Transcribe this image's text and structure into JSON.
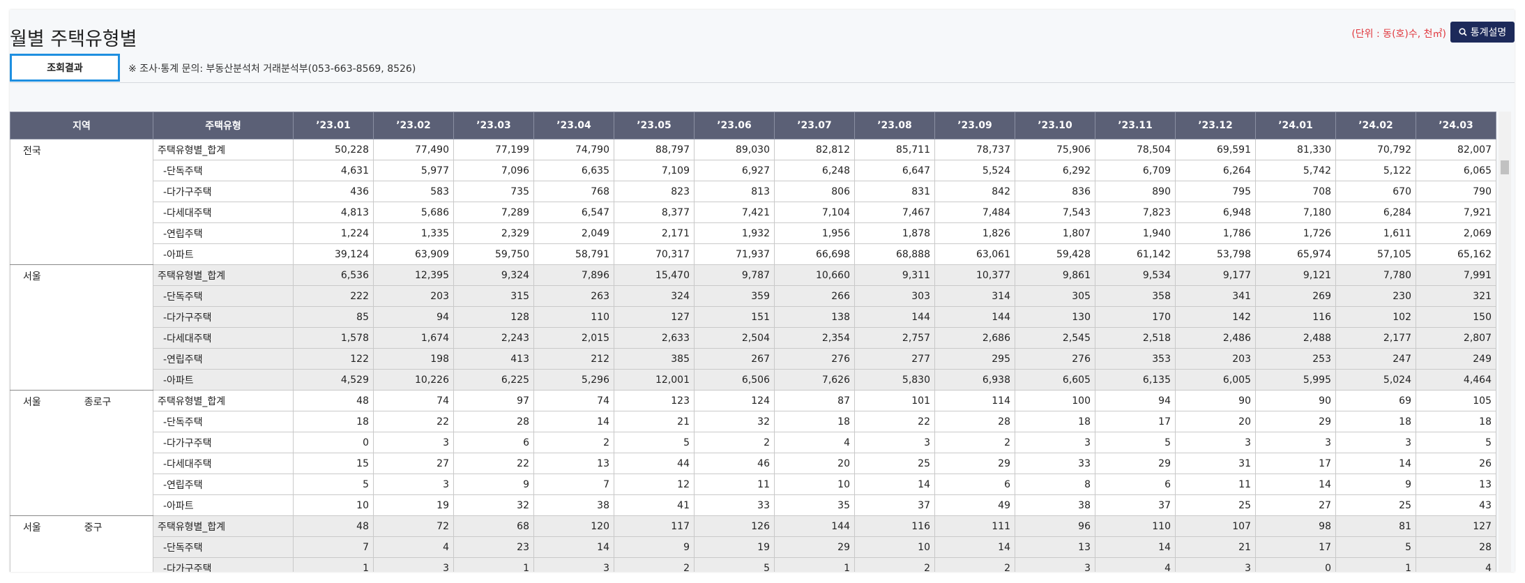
{
  "header": {
    "title": "월별 주택유형별",
    "unit": "(단위 : 동(호)수, 천㎡)",
    "button": "통계설명"
  },
  "tab": {
    "label": "조회결과",
    "note": "※ 조사·통계 문의: 부동산분석처 거래분석부(053-663-8569, 8526)"
  },
  "table": {
    "columns": [
      "지역",
      "주택유형",
      "’23.01",
      "’23.02",
      "’23.03",
      "’23.04",
      "’23.05",
      "’23.06",
      "’23.07",
      "’23.08",
      "’23.09",
      "’23.10",
      "’23.11",
      "’23.12",
      "’24.01",
      "’24.02",
      "’24.03"
    ],
    "groups": [
      {
        "region": "전국",
        "rows": [
          {
            "type": "주택유형별_합계",
            "values": [
              "50,228",
              "77,490",
              "77,199",
              "74,790",
              "88,797",
              "89,030",
              "82,812",
              "85,711",
              "78,737",
              "75,906",
              "78,504",
              "69,591",
              "81,330",
              "70,792",
              "82,007"
            ]
          },
          {
            "type": "-단독주택",
            "values": [
              "4,631",
              "5,977",
              "7,096",
              "6,635",
              "7,109",
              "6,927",
              "6,248",
              "6,647",
              "5,524",
              "6,292",
              "6,709",
              "6,264",
              "5,742",
              "5,122",
              "6,065"
            ]
          },
          {
            "type": "-다가구주택",
            "values": [
              "436",
              "583",
              "735",
              "768",
              "823",
              "813",
              "806",
              "831",
              "842",
              "836",
              "890",
              "795",
              "708",
              "670",
              "790"
            ]
          },
          {
            "type": "-다세대주택",
            "values": [
              "4,813",
              "5,686",
              "7,289",
              "6,547",
              "8,377",
              "7,421",
              "7,104",
              "7,467",
              "7,484",
              "7,543",
              "7,823",
              "6,948",
              "7,180",
              "6,284",
              "7,921"
            ]
          },
          {
            "type": "-연립주택",
            "values": [
              "1,224",
              "1,335",
              "2,329",
              "2,049",
              "2,171",
              "1,932",
              "1,956",
              "1,878",
              "1,826",
              "1,807",
              "1,940",
              "1,786",
              "1,726",
              "1,611",
              "2,069"
            ]
          },
          {
            "type": "-아파트",
            "values": [
              "39,124",
              "63,909",
              "59,750",
              "58,791",
              "70,317",
              "71,937",
              "66,698",
              "68,888",
              "63,061",
              "59,428",
              "61,142",
              "53,798",
              "65,974",
              "57,105",
              "65,162"
            ]
          }
        ]
      },
      {
        "region": "서울",
        "rows": [
          {
            "type": "주택유형별_합계",
            "values": [
              "6,536",
              "12,395",
              "9,324",
              "7,896",
              "15,470",
              "9,787",
              "10,660",
              "9,311",
              "10,377",
              "9,861",
              "9,534",
              "9,177",
              "9,121",
              "7,780",
              "7,991"
            ]
          },
          {
            "type": "-단독주택",
            "values": [
              "222",
              "203",
              "315",
              "263",
              "324",
              "359",
              "266",
              "303",
              "314",
              "305",
              "358",
              "341",
              "269",
              "230",
              "321"
            ]
          },
          {
            "type": "-다가구주택",
            "values": [
              "85",
              "94",
              "128",
              "110",
              "127",
              "151",
              "138",
              "144",
              "144",
              "130",
              "170",
              "142",
              "116",
              "102",
              "150"
            ]
          },
          {
            "type": "-다세대주택",
            "values": [
              "1,578",
              "1,674",
              "2,243",
              "2,015",
              "2,633",
              "2,504",
              "2,354",
              "2,757",
              "2,686",
              "2,545",
              "2,518",
              "2,486",
              "2,488",
              "2,177",
              "2,807"
            ]
          },
          {
            "type": "-연립주택",
            "values": [
              "122",
              "198",
              "413",
              "212",
              "385",
              "267",
              "276",
              "277",
              "295",
              "276",
              "353",
              "203",
              "253",
              "247",
              "249"
            ]
          },
          {
            "type": "-아파트",
            "values": [
              "4,529",
              "10,226",
              "6,225",
              "5,296",
              "12,001",
              "6,506",
              "7,626",
              "5,830",
              "6,938",
              "6,605",
              "6,135",
              "6,005",
              "5,995",
              "5,024",
              "4,464"
            ]
          }
        ]
      },
      {
        "region": "서울",
        "district": "종로구",
        "rows": [
          {
            "type": "주택유형별_합계",
            "values": [
              "48",
              "74",
              "97",
              "74",
              "123",
              "124",
              "87",
              "101",
              "114",
              "100",
              "94",
              "90",
              "90",
              "69",
              "105"
            ]
          },
          {
            "type": "-단독주택",
            "values": [
              "18",
              "22",
              "28",
              "14",
              "21",
              "32",
              "18",
              "22",
              "28",
              "18",
              "17",
              "20",
              "29",
              "18",
              "18"
            ]
          },
          {
            "type": "-다가구주택",
            "values": [
              "0",
              "3",
              "6",
              "2",
              "5",
              "2",
              "4",
              "3",
              "2",
              "3",
              "5",
              "3",
              "3",
              "3",
              "5"
            ]
          },
          {
            "type": "-다세대주택",
            "values": [
              "15",
              "27",
              "22",
              "13",
              "44",
              "46",
              "20",
              "25",
              "29",
              "33",
              "29",
              "31",
              "17",
              "14",
              "26"
            ]
          },
          {
            "type": "-연립주택",
            "values": [
              "5",
              "3",
              "9",
              "7",
              "12",
              "11",
              "10",
              "14",
              "6",
              "8",
              "6",
              "11",
              "14",
              "9",
              "13"
            ]
          },
          {
            "type": "-아파트",
            "values": [
              "10",
              "19",
              "32",
              "38",
              "41",
              "33",
              "35",
              "37",
              "49",
              "38",
              "37",
              "25",
              "27",
              "25",
              "43"
            ]
          }
        ]
      },
      {
        "region": "서울",
        "district": "중구",
        "rows": [
          {
            "type": "주택유형별_합계",
            "values": [
              "48",
              "72",
              "68",
              "120",
              "117",
              "126",
              "144",
              "116",
              "111",
              "96",
              "110",
              "107",
              "98",
              "81",
              "127"
            ]
          },
          {
            "type": "-단독주택",
            "values": [
              "7",
              "4",
              "23",
              "14",
              "9",
              "19",
              "29",
              "10",
              "14",
              "13",
              "14",
              "21",
              "17",
              "5",
              "28"
            ]
          },
          {
            "type": "-다가구주택",
            "values": [
              "1",
              "3",
              "1",
              "3",
              "2",
              "5",
              "1",
              "2",
              "2",
              "3",
              "4",
              "3",
              "0",
              "1",
              "4"
            ]
          }
        ]
      }
    ]
  }
}
